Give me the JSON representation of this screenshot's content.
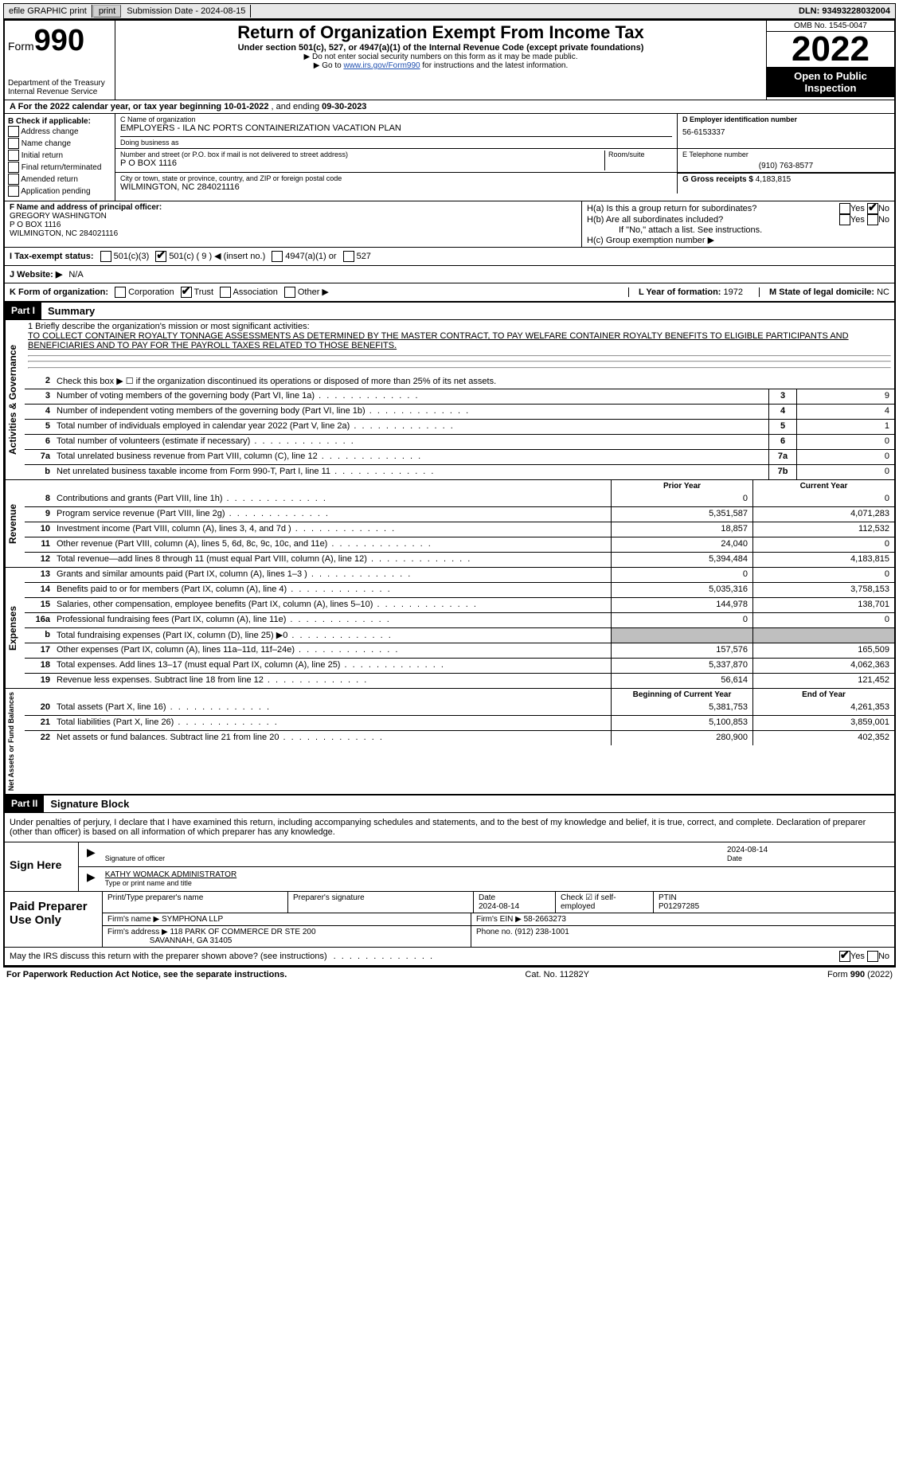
{
  "topbar": {
    "efile": "efile GRAPHIC print",
    "subdate_lbl": "Submission Date - 2024-08-15",
    "dln": "DLN: 93493228032004"
  },
  "header": {
    "form_word": "Form",
    "form_num": "990",
    "dept": "Department of the Treasury\nInternal Revenue Service",
    "title": "Return of Organization Exempt From Income Tax",
    "sub": "Under section 501(c), 527, or 4947(a)(1) of the Internal Revenue Code (except private foundations)",
    "note1": "▶ Do not enter social security numbers on this form as it may be made public.",
    "note2_pre": "▶ Go to ",
    "note2_link": "www.irs.gov/Form990",
    "note2_post": " for instructions and the latest information.",
    "omb": "OMB No. 1545-0047",
    "year": "2022",
    "otp": "Open to Public Inspection"
  },
  "a": {
    "text_pre": "A For the 2022 calendar year, or tax year beginning ",
    "begin": "10-01-2022",
    "mid": " , and ending ",
    "end": "09-30-2023"
  },
  "b": {
    "header": "B Check if applicable:",
    "items": [
      "Address change",
      "Name change",
      "Initial return",
      "Final return/terminated",
      "Amended return",
      "Application pending"
    ]
  },
  "c": {
    "name_lbl": "C Name of organization",
    "name": "EMPLOYERS - ILA NC PORTS CONTAINERIZATION VACATION PLAN",
    "dba_lbl": "Doing business as",
    "dba": "",
    "addr_lbl": "Number and street (or P.O. box if mail is not delivered to street address)",
    "room_lbl": "Room/suite",
    "addr": "P O BOX 1116",
    "city_lbl": "City or town, state or province, country, and ZIP or foreign postal code",
    "city": "WILMINGTON, NC  284021116"
  },
  "d": {
    "lbl": "D Employer identification number",
    "val": "56-6153337"
  },
  "e": {
    "lbl": "E Telephone number",
    "val": "(910) 763-8577"
  },
  "g": {
    "lbl": "G Gross receipts $",
    "val": "4,183,815"
  },
  "f": {
    "lbl": "F Name and address of principal officer:",
    "name": "GREGORY WASHINGTON",
    "addr1": "P O BOX 1116",
    "addr2": "WILMINGTON, NC  284021116"
  },
  "h": {
    "a_lbl": "H(a)  Is this a group return for subordinates?",
    "b_lbl": "H(b)  Are all subordinates included?",
    "note": "If \"No,\" attach a list. See instructions.",
    "c_lbl": "H(c)  Group exemption number ▶"
  },
  "i": {
    "lbl": "I  Tax-exempt status:",
    "insert": "501(c) ( 9 ) ◀ (insert no.)"
  },
  "j": {
    "lbl": "J  Website: ▶",
    "val": "N/A"
  },
  "k": {
    "lbl": "K Form of organization:"
  },
  "l": {
    "lbl": "L Year of formation:",
    "val": "1972"
  },
  "m": {
    "lbl": "M State of legal domicile:",
    "val": "NC"
  },
  "part1": {
    "hdr": "Part I",
    "title": "Summary"
  },
  "mission": {
    "lbl": "1   Briefly describe the organization's mission or most significant activities:",
    "text": "TO COLLECT CONTAINER ROYALTY TONNAGE ASSESSMENTS AS DETERMINED BY THE MASTER CONTRACT, TO PAY WELFARE CONTAINER ROYALTY BENEFITS TO ELIGIBLE PARTICIPANTS AND BENEFICIARIES AND TO PAY FOR THE PAYROLL TAXES RELATED TO THOSE BENEFITS."
  },
  "lines_gov": [
    {
      "n": "2",
      "t": "Check this box ▶ ☐ if the organization discontinued its operations or disposed of more than 25% of its net assets.",
      "box": "",
      "v": ""
    },
    {
      "n": "3",
      "t": "Number of voting members of the governing body (Part VI, line 1a)",
      "box": "3",
      "v": "9"
    },
    {
      "n": "4",
      "t": "Number of independent voting members of the governing body (Part VI, line 1b)",
      "box": "4",
      "v": "4"
    },
    {
      "n": "5",
      "t": "Total number of individuals employed in calendar year 2022 (Part V, line 2a)",
      "box": "5",
      "v": "1"
    },
    {
      "n": "6",
      "t": "Total number of volunteers (estimate if necessary)",
      "box": "6",
      "v": "0"
    },
    {
      "n": "7a",
      "t": "Total unrelated business revenue from Part VIII, column (C), line 12",
      "box": "7a",
      "v": "0"
    },
    {
      "n": "b",
      "t": "Net unrelated business taxable income from Form 990-T, Part I, line 11",
      "box": "7b",
      "v": "0"
    }
  ],
  "colhdr": {
    "prior": "Prior Year",
    "curr": "Current Year",
    "boy": "Beginning of Current Year",
    "eoy": "End of Year"
  },
  "rev": [
    {
      "n": "8",
      "t": "Contributions and grants (Part VIII, line 1h)",
      "p": "0",
      "c": "0"
    },
    {
      "n": "9",
      "t": "Program service revenue (Part VIII, line 2g)",
      "p": "5,351,587",
      "c": "4,071,283"
    },
    {
      "n": "10",
      "t": "Investment income (Part VIII, column (A), lines 3, 4, and 7d )",
      "p": "18,857",
      "c": "112,532"
    },
    {
      "n": "11",
      "t": "Other revenue (Part VIII, column (A), lines 5, 6d, 8c, 9c, 10c, and 11e)",
      "p": "24,040",
      "c": "0"
    },
    {
      "n": "12",
      "t": "Total revenue—add lines 8 through 11 (must equal Part VIII, column (A), line 12)",
      "p": "5,394,484",
      "c": "4,183,815"
    }
  ],
  "exp": [
    {
      "n": "13",
      "t": "Grants and similar amounts paid (Part IX, column (A), lines 1–3 )",
      "p": "0",
      "c": "0"
    },
    {
      "n": "14",
      "t": "Benefits paid to or for members (Part IX, column (A), line 4)",
      "p": "5,035,316",
      "c": "3,758,153"
    },
    {
      "n": "15",
      "t": "Salaries, other compensation, employee benefits (Part IX, column (A), lines 5–10)",
      "p": "144,978",
      "c": "138,701"
    },
    {
      "n": "16a",
      "t": "Professional fundraising fees (Part IX, column (A), line 11e)",
      "p": "0",
      "c": "0"
    },
    {
      "n": "b",
      "t": "Total fundraising expenses (Part IX, column (D), line 25) ▶0",
      "p": "shade",
      "c": "shade"
    },
    {
      "n": "17",
      "t": "Other expenses (Part IX, column (A), lines 11a–11d, 11f–24e)",
      "p": "157,576",
      "c": "165,509"
    },
    {
      "n": "18",
      "t": "Total expenses. Add lines 13–17 (must equal Part IX, column (A), line 25)",
      "p": "5,337,870",
      "c": "4,062,363"
    },
    {
      "n": "19",
      "t": "Revenue less expenses. Subtract line 18 from line 12",
      "p": "56,614",
      "c": "121,452"
    }
  ],
  "net": [
    {
      "n": "20",
      "t": "Total assets (Part X, line 16)",
      "p": "5,381,753",
      "c": "4,261,353"
    },
    {
      "n": "21",
      "t": "Total liabilities (Part X, line 26)",
      "p": "5,100,853",
      "c": "3,859,001"
    },
    {
      "n": "22",
      "t": "Net assets or fund balances. Subtract line 21 from line 20",
      "p": "280,900",
      "c": "402,352"
    }
  ],
  "vlabels": {
    "gov": "Activities & Governance",
    "rev": "Revenue",
    "exp": "Expenses",
    "net": "Net Assets or Fund Balances"
  },
  "part2": {
    "hdr": "Part II",
    "title": "Signature Block"
  },
  "sig": {
    "decl": "Under penalties of perjury, I declare that I have examined this return, including accompanying schedules and statements, and to the best of my knowledge and belief, it is true, correct, and complete. Declaration of preparer (other than officer) is based on all information of which preparer has any knowledge.",
    "here": "Sign Here",
    "sig_lbl": "Signature of officer",
    "date_lbl": "Date",
    "date": "2024-08-14",
    "name": "KATHY WOMACK  ADMINISTRATOR",
    "name_lbl": "Type or print name and title"
  },
  "prep": {
    "title": "Paid Preparer Use Only",
    "h1": "Print/Type preparer's name",
    "h2": "Preparer's signature",
    "h3": "Date",
    "h3v": "2024-08-14",
    "h4": "Check ☑ if self-employed",
    "h5": "PTIN",
    "h5v": "P01297285",
    "firm_lbl": "Firm's name   ▶",
    "firm": "SYMPHONA LLP",
    "ein_lbl": "Firm's EIN ▶",
    "ein": "58-2663273",
    "addr_lbl": "Firm's address ▶",
    "addr1": "118 PARK OF COMMERCE DR STE 200",
    "addr2": "SAVANNAH, GA  31405",
    "ph_lbl": "Phone no.",
    "ph": "(912) 238-1001"
  },
  "discuss": "May the IRS discuss this return with the preparer shown above? (see instructions)",
  "foot": {
    "l": "For Paperwork Reduction Act Notice, see the separate instructions.",
    "m": "Cat. No. 11282Y",
    "r": "Form 990 (2022)"
  }
}
